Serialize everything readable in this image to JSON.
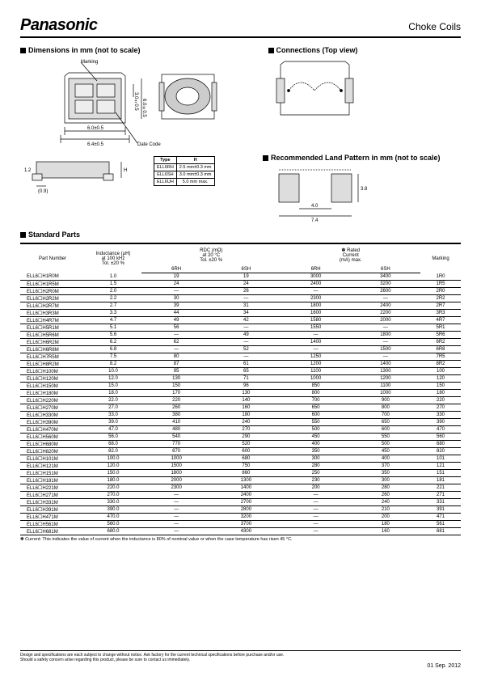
{
  "header": {
    "brand": "Panasonic",
    "title": "Choke Coils"
  },
  "sections": {
    "dimensions": "Dimensions in mm (not to scale)",
    "connections": "Connections (Top view)",
    "land_pattern": "Recommended Land Pattern in mm (not to scale)",
    "standard_parts": "Standard Parts"
  },
  "dim_labels": {
    "marking": "Marking",
    "datecode": "Date Code",
    "w1": "6.0±0.5",
    "w2": "6.4±0.5",
    "h1": "3.0±0.5",
    "h2": "6.0±0.5",
    "side": "(0.9)",
    "sidel": "1.2"
  },
  "type_table": {
    "head": [
      "Type",
      "H"
    ],
    "rows": [
      [
        "ELL6RH",
        "2.5 mm±0.3 mm"
      ],
      [
        "ELL6SH",
        "3.0 mm±0.3 mm"
      ],
      [
        "ELL6UH",
        "5.0 mm max."
      ]
    ]
  },
  "land": {
    "a": "3.8",
    "b": "4.0",
    "c": "7.4"
  },
  "table_head": {
    "part": "Part Number",
    "inductance_l1": "Inductance (µH)",
    "inductance_l2": "at 100 kHz",
    "inductance_l3": "Tol. ±20 %",
    "rdc_l1": "RDC (mΩ)",
    "rdc_l2": "at 20 °C",
    "rdc_l3": "Tol. ±20 %",
    "rated_l1": "✽ Rated",
    "rated_l2": "Current",
    "rated_l3": "(mA) max.",
    "marking": "Marking",
    "sub_6rh": "6RH",
    "sub_6sh": "6SH"
  },
  "parts": [
    {
      "pn": "ELL6☐H1R0M",
      "ind": "1.0",
      "r6rh": "19",
      "r6sh": "19",
      "c6rh": "3000",
      "c6sh": "3400",
      "mk": "1R0"
    },
    {
      "pn": "ELL6☐H1R5M",
      "ind": "1.5",
      "r6rh": "24",
      "r6sh": "24",
      "c6rh": "2400",
      "c6sh": "3200",
      "mk": "1R5"
    },
    {
      "pn": "ELL6☐H2R0M",
      "ind": "2.0",
      "r6rh": "—",
      "r6sh": "26",
      "c6rh": "—",
      "c6sh": "2600",
      "mk": "2R0"
    },
    {
      "pn": "ELL6☐H2R2M",
      "ind": "2.2",
      "r6rh": "30",
      "r6sh": "—",
      "c6rh": "2300",
      "c6sh": "—",
      "mk": "2R2"
    },
    {
      "pn": "ELL6☐H2R7M",
      "ind": "2.7",
      "r6rh": "39",
      "r6sh": "31",
      "c6rh": "1800",
      "c6sh": "2400",
      "mk": "2R7"
    },
    {
      "pn": "ELL6☐H3R3M",
      "ind": "3.3",
      "r6rh": "44",
      "r6sh": "34",
      "c6rh": "1600",
      "c6sh": "2200",
      "mk": "3R3"
    },
    {
      "pn": "ELL6☐H4R7M",
      "ind": "4.7",
      "r6rh": "49",
      "r6sh": "42",
      "c6rh": "1580",
      "c6sh": "2000",
      "mk": "4R7"
    },
    {
      "pn": "ELL6☐H5R1M",
      "ind": "5.1",
      "r6rh": "56",
      "r6sh": "—",
      "c6rh": "1550",
      "c6sh": "—",
      "mk": "5R1"
    },
    {
      "pn": "ELL6☐H5R6M",
      "ind": "5.6",
      "r6rh": "—",
      "r6sh": "49",
      "c6rh": "—",
      "c6sh": "1800",
      "mk": "5R6"
    },
    {
      "pn": "ELL6☐H6R2M",
      "ind": "6.2",
      "r6rh": "62",
      "r6sh": "—",
      "c6rh": "1400",
      "c6sh": "—",
      "mk": "6R2"
    },
    {
      "pn": "ELL6☐H6R8M",
      "ind": "6.8",
      "r6rh": "—",
      "r6sh": "52",
      "c6rh": "—",
      "c6sh": "1500",
      "mk": "6R8"
    },
    {
      "pn": "ELL6☐H7R5M",
      "ind": "7.5",
      "r6rh": "80",
      "r6sh": "—",
      "c6rh": "1250",
      "c6sh": "—",
      "mk": "7R5"
    },
    {
      "pn": "ELL6☐H8R2M",
      "ind": "8.2",
      "r6rh": "87",
      "r6sh": "61",
      "c6rh": "1200",
      "c6sh": "1400",
      "mk": "8R2"
    },
    {
      "pn": "ELL6☐H100M",
      "ind": "10.0",
      "r6rh": "95",
      "r6sh": "65",
      "c6rh": "1100",
      "c6sh": "1300",
      "mk": "100"
    },
    {
      "pn": "ELL6☐H120M",
      "ind": "12.0",
      "r6rh": "130",
      "r6sh": "71",
      "c6rh": "1000",
      "c6sh": "1200",
      "mk": "120"
    },
    {
      "pn": "ELL6☐H150M",
      "ind": "15.0",
      "r6rh": "150",
      "r6sh": "96",
      "c6rh": "850",
      "c6sh": "1100",
      "mk": "150"
    },
    {
      "pn": "ELL6☐H180M",
      "ind": "18.0",
      "r6rh": "170",
      "r6sh": "130",
      "c6rh": "800",
      "c6sh": "1000",
      "mk": "180"
    },
    {
      "pn": "ELL6☐H220M",
      "ind": "22.0",
      "r6rh": "220",
      "r6sh": "140",
      "c6rh": "700",
      "c6sh": "900",
      "mk": "220"
    },
    {
      "pn": "ELL6☐H270M",
      "ind": "27.0",
      "r6rh": "260",
      "r6sh": "160",
      "c6rh": "650",
      "c6sh": "800",
      "mk": "270"
    },
    {
      "pn": "ELL6☐H330M",
      "ind": "33.0",
      "r6rh": "380",
      "r6sh": "180",
      "c6rh": "600",
      "c6sh": "700",
      "mk": "330"
    },
    {
      "pn": "ELL6☐H390M",
      "ind": "39.0",
      "r6rh": "410",
      "r6sh": "240",
      "c6rh": "550",
      "c6sh": "650",
      "mk": "390"
    },
    {
      "pn": "ELL6☐H470M",
      "ind": "47.0",
      "r6rh": "480",
      "r6sh": "270",
      "c6rh": "500",
      "c6sh": "600",
      "mk": "470"
    },
    {
      "pn": "ELL6☐H560M",
      "ind": "56.0",
      "r6rh": "540",
      "r6sh": "290",
      "c6rh": "450",
      "c6sh": "550",
      "mk": "560"
    },
    {
      "pn": "ELL6☐H680M",
      "ind": "68.0",
      "r6rh": "770",
      "r6sh": "520",
      "c6rh": "400",
      "c6sh": "500",
      "mk": "680"
    },
    {
      "pn": "ELL6☐H820M",
      "ind": "82.0",
      "r6rh": "870",
      "r6sh": "600",
      "c6rh": "350",
      "c6sh": "450",
      "mk": "820"
    },
    {
      "pn": "ELL6☐H101M",
      "ind": "100.0",
      "r6rh": "1000",
      "r6sh": "680",
      "c6rh": "300",
      "c6sh": "400",
      "mk": "101"
    },
    {
      "pn": "ELL6☐H121M",
      "ind": "120.0",
      "r6rh": "1500",
      "r6sh": "750",
      "c6rh": "280",
      "c6sh": "370",
      "mk": "121"
    },
    {
      "pn": "ELL6☐H151M",
      "ind": "150.0",
      "r6rh": "1800",
      "r6sh": "860",
      "c6rh": "250",
      "c6sh": "350",
      "mk": "151"
    },
    {
      "pn": "ELL6☐H181M",
      "ind": "180.0",
      "r6rh": "2000",
      "r6sh": "1300",
      "c6rh": "230",
      "c6sh": "300",
      "mk": "181"
    },
    {
      "pn": "ELL6☐H221M",
      "ind": "220.0",
      "r6rh": "2300",
      "r6sh": "1400",
      "c6rh": "200",
      "c6sh": "280",
      "mk": "221"
    },
    {
      "pn": "ELL6☐H271M",
      "ind": "270.0",
      "r6rh": "—",
      "r6sh": "2400",
      "c6rh": "—",
      "c6sh": "260",
      "mk": "271"
    },
    {
      "pn": "ELL6☐H331M",
      "ind": "330.0",
      "r6rh": "—",
      "r6sh": "2700",
      "c6rh": "—",
      "c6sh": "240",
      "mk": "331"
    },
    {
      "pn": "ELL6☐H391M",
      "ind": "390.0",
      "r6rh": "—",
      "r6sh": "2800",
      "c6rh": "—",
      "c6sh": "210",
      "mk": "391"
    },
    {
      "pn": "ELL6☐H471M",
      "ind": "470.0",
      "r6rh": "—",
      "r6sh": "3200",
      "c6rh": "—",
      "c6sh": "200",
      "mk": "471"
    },
    {
      "pn": "ELL6☐H561M",
      "ind": "560.0",
      "r6rh": "—",
      "r6sh": "3700",
      "c6rh": "—",
      "c6sh": "180",
      "mk": "561"
    },
    {
      "pn": "ELL6☐H681M",
      "ind": "680.0",
      "r6rh": "—",
      "r6sh": "4300",
      "c6rh": "—",
      "c6sh": "160",
      "mk": "681"
    }
  ],
  "footnote": "✽ Current: This indicates the value of current when the inductance is 80% of nominal value or when the case temperature has risen 45 °C.",
  "footer_l1": "Design and specifications are each subject to change without notice. Ask factory for the current technical specifications before purchase and/or use.",
  "footer_l2": "Should a safety concern arise regarding this product, please be sure to contact us immediately.",
  "footer_date": "01 Sep. 2012"
}
